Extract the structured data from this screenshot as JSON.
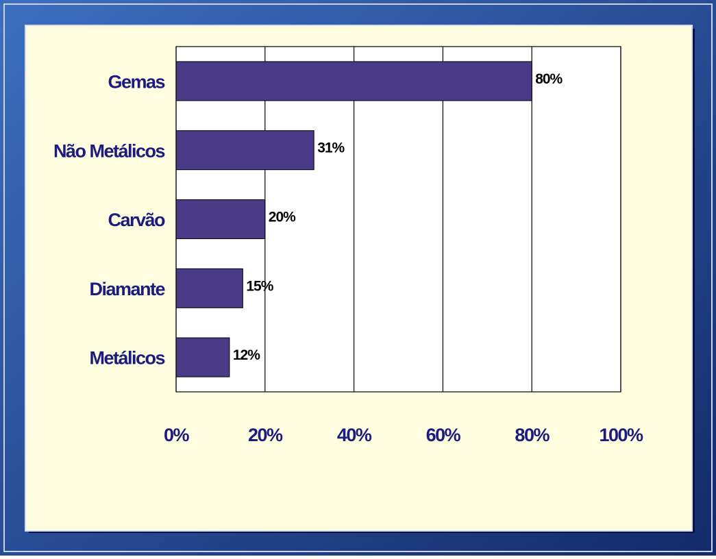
{
  "chart_data": {
    "type": "barh",
    "categories": [
      "Gemas",
      "Não Metálicos",
      "Carvão",
      "Diamante",
      "Metálicos"
    ],
    "values": [
      80,
      31,
      20,
      15,
      12
    ],
    "value_labels": [
      "80%",
      "31%",
      "20%",
      "15%",
      "12%"
    ],
    "color": "#4b3a88",
    "xlim": [
      0,
      100
    ],
    "xticks": [
      {
        "value": 0,
        "label": "0%"
      },
      {
        "value": 20,
        "label": "20%"
      },
      {
        "value": 40,
        "label": "40%"
      },
      {
        "value": 60,
        "label": "60%"
      },
      {
        "value": 80,
        "label": "80%"
      },
      {
        "value": 100,
        "label": "100%"
      }
    ],
    "grid": true
  }
}
